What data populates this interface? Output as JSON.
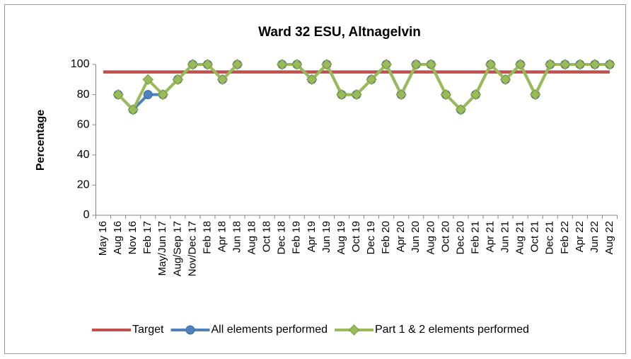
{
  "chart_data": {
    "type": "line",
    "title": "Ward 32 ESU, Altnagelvin",
    "y_label": "Percentage",
    "categories": [
      "May 16",
      "Aug 16",
      "Nov 16",
      "Feb 17",
      "May/Jun 17",
      "Aug/Sep 17",
      "Nov/Dec 17",
      "Feb 18",
      "Apr 18",
      "Jun 18",
      "Aug 18",
      "Oct 18",
      "Dec 18",
      "Feb 19",
      "Apr 19",
      "Jun 19",
      "Aug 19",
      "Oct 19",
      "Dec 19",
      "Feb 20",
      "Apr 20",
      "Jun 20",
      "Aug 20",
      "Oct 20",
      "Dec 20",
      "Feb 21",
      "Apr 21",
      "Jun 21",
      "Aug 21",
      "Oct 21",
      "Dec 21",
      "Feb 22",
      "Apr 22",
      "Jun 22",
      "Aug 22"
    ],
    "series": [
      {
        "name": "Target",
        "color": "#c0504d",
        "marker": "none",
        "values": [
          95,
          95,
          95,
          95,
          95,
          95,
          95,
          95,
          95,
          95,
          95,
          95,
          95,
          95,
          95,
          95,
          95,
          95,
          95,
          95,
          95,
          95,
          95,
          95,
          95,
          95,
          95,
          95,
          95,
          95,
          95,
          95,
          95,
          95,
          95
        ]
      },
      {
        "name": "All elements performed",
        "color": "#4f81bd",
        "marker": "circle",
        "values": [
          null,
          80,
          70,
          80,
          80,
          90,
          100,
          100,
          90,
          100,
          null,
          null,
          100,
          100,
          90,
          100,
          80,
          80,
          90,
          100,
          80,
          100,
          100,
          80,
          70,
          80,
          100,
          90,
          100,
          80,
          100,
          100,
          100,
          100,
          100
        ]
      },
      {
        "name": "Part 1 & 2 elements performed",
        "color": "#9bbb59",
        "marker": "diamond",
        "values": [
          null,
          80,
          70,
          90,
          80,
          90,
          100,
          100,
          90,
          100,
          null,
          null,
          100,
          100,
          90,
          100,
          80,
          80,
          90,
          100,
          80,
          100,
          100,
          80,
          70,
          80,
          100,
          90,
          100,
          80,
          100,
          100,
          100,
          100,
          100
        ]
      }
    ],
    "ylim": [
      0,
      100
    ],
    "yticks": [
      0,
      20,
      40,
      60,
      80,
      100
    ],
    "grid": false,
    "legend": "bottom"
  }
}
